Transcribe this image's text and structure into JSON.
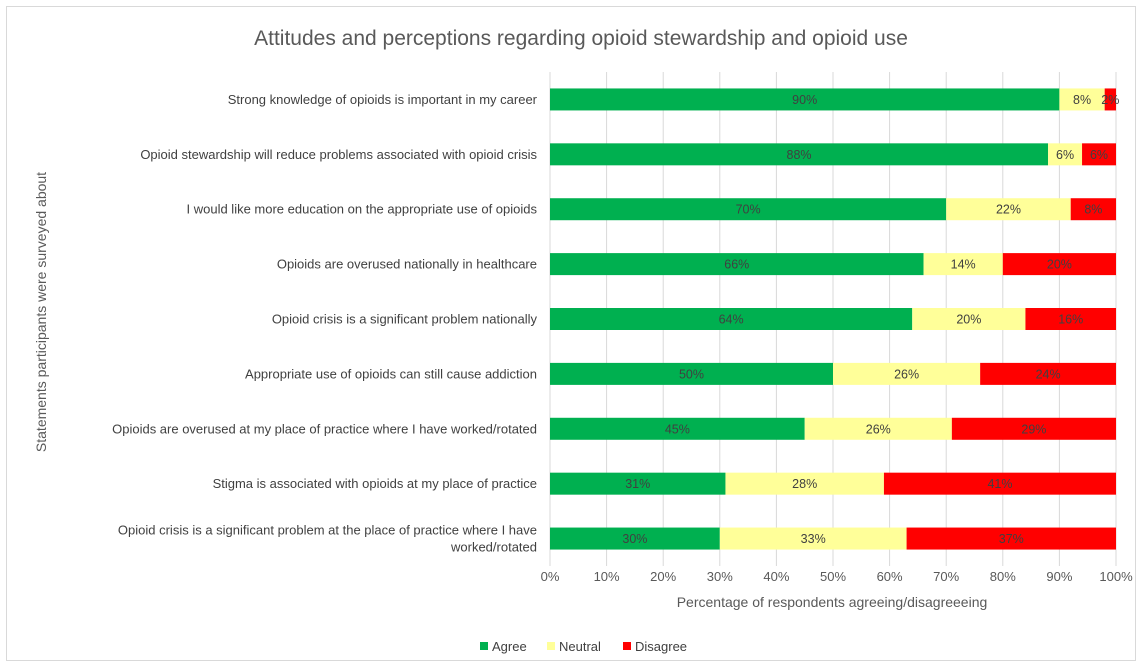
{
  "chart_data": {
    "type": "bar",
    "orientation": "horizontal",
    "stacked": true,
    "title": "Attitudes and perceptions regarding opioid stewardship and opioid use",
    "xlabel": "Percentage of respondents agreeing/disagreeeing",
    "ylabel": "Statements participants were surveyed about",
    "xlim": [
      0,
      100
    ],
    "x_ticks": [
      "0%",
      "10%",
      "20%",
      "30%",
      "40%",
      "50%",
      "60%",
      "70%",
      "80%",
      "90%",
      "100%"
    ],
    "grid": true,
    "legend_position": "bottom",
    "categories": [
      [
        "Strong knowledge of opioids is important in my career"
      ],
      [
        "Opioid stewardship will reduce problems associated with opioid crisis"
      ],
      [
        "I would like more education on the appropriate use of opioids"
      ],
      [
        "Opioids are overused nationally in healthcare"
      ],
      [
        "Opioid crisis is a significant problem nationally"
      ],
      [
        "Appropriate use of opioids can still cause addiction"
      ],
      [
        "Opioids are overused at my place of practice where I have worked/rotated"
      ],
      [
        "Stigma is associated with opioids at my place of practice"
      ],
      [
        "Opioid crisis is a significant problem at the place of practice where I have",
        "worked/rotated"
      ]
    ],
    "series": [
      {
        "name": "Agree",
        "color": "#00b050",
        "values": [
          90,
          88,
          70,
          66,
          64,
          50,
          45,
          31,
          30
        ],
        "labels": [
          "90%",
          "88%",
          "70%",
          "66%",
          "64%",
          "50%",
          "45%",
          "31%",
          "30%"
        ]
      },
      {
        "name": "Neutral",
        "color": "#ffff99",
        "values": [
          8,
          6,
          22,
          14,
          20,
          26,
          26,
          28,
          33
        ],
        "labels": [
          "8%",
          "6%",
          "22%",
          "14%",
          "20%",
          "26%",
          "26%",
          "28%",
          "33%"
        ]
      },
      {
        "name": "Disagree",
        "color": "#ff0000",
        "values": [
          2,
          6,
          8,
          20,
          16,
          24,
          29,
          41,
          37
        ],
        "labels": [
          "2%",
          "6%",
          "8%",
          "20%",
          "16%",
          "24%",
          "29%",
          "41%",
          "37%"
        ]
      }
    ]
  }
}
